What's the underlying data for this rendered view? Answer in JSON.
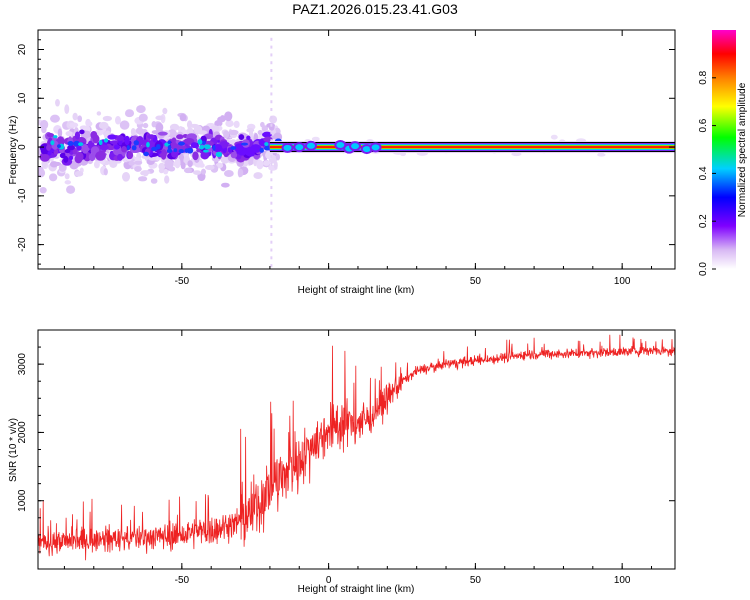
{
  "title": "PAZ1.2026.015.23.41.G03",
  "chart_data": [
    {
      "type": "heatmap",
      "title": "",
      "xlabel": "Height of straight line (km)",
      "ylabel": "Frequency (Hz)",
      "xlim": [
        -99,
        118
      ],
      "ylim": [
        -25,
        24
      ],
      "x_ticks": [
        -50,
        0,
        50,
        100
      ],
      "x_tick_labels": [
        "-50",
        "",
        "50",
        "100"
      ],
      "y_ticks": [
        -20,
        -10,
        0,
        10,
        20
      ],
      "y_tick_labels": [
        "-20",
        "-10",
        "0",
        "10",
        "20"
      ],
      "colorbar": {
        "label": "Normalized spectral amplitude",
        "range": [
          0,
          1
        ],
        "ticks": [
          0.0,
          0.2,
          0.4,
          0.6,
          0.8
        ],
        "tick_labels": [
          "0.0",
          "0.2",
          "0.4",
          "0.6",
          "0.8"
        ],
        "colors": [
          "#ffffff",
          "#c9a0f0",
          "#7f00ff",
          "#0000ff",
          "#00ffff",
          "#00ff00",
          "#ffff00",
          "#ff8000",
          "#ff0000",
          "#ff00ff"
        ]
      },
      "description_data": {
        "signal_line_frequency": 0,
        "scatter_region_x": [
          -99,
          -20
        ],
        "scatter_region_freq_range": [
          -12,
          10
        ],
        "strong_line_start_x": -20
      }
    },
    {
      "type": "line",
      "title": "",
      "xlabel": "Height of straight line (km)",
      "ylabel": "SNR (10 * v/v)",
      "xlim": [
        -99,
        118
      ],
      "ylim": [
        0,
        3500
      ],
      "x_ticks": [
        -50,
        0,
        50,
        100
      ],
      "x_tick_labels": [
        "-50",
        "0",
        "50",
        "100"
      ],
      "y_ticks": [
        1000,
        2000,
        3000
      ],
      "y_tick_labels": [
        "1000",
        "2000",
        "3000"
      ],
      "series": [
        {
          "name": "SNR",
          "color": "#ee2222",
          "x": [
            -99,
            -90,
            -80,
            -70,
            -60,
            -50,
            -40,
            -30,
            -25,
            -20,
            -15,
            -10,
            -5,
            0,
            5,
            10,
            15,
            20,
            25,
            30,
            40,
            50,
            60,
            70,
            80,
            90,
            100,
            110,
            118
          ],
          "values": [
            380,
            400,
            430,
            450,
            470,
            500,
            560,
            700,
            900,
            1200,
            1350,
            1600,
            1850,
            2050,
            2150,
            2100,
            2250,
            2500,
            2750,
            2900,
            3000,
            3050,
            3100,
            3150,
            3150,
            3170,
            3180,
            3200,
            3200
          ]
        }
      ]
    }
  ]
}
